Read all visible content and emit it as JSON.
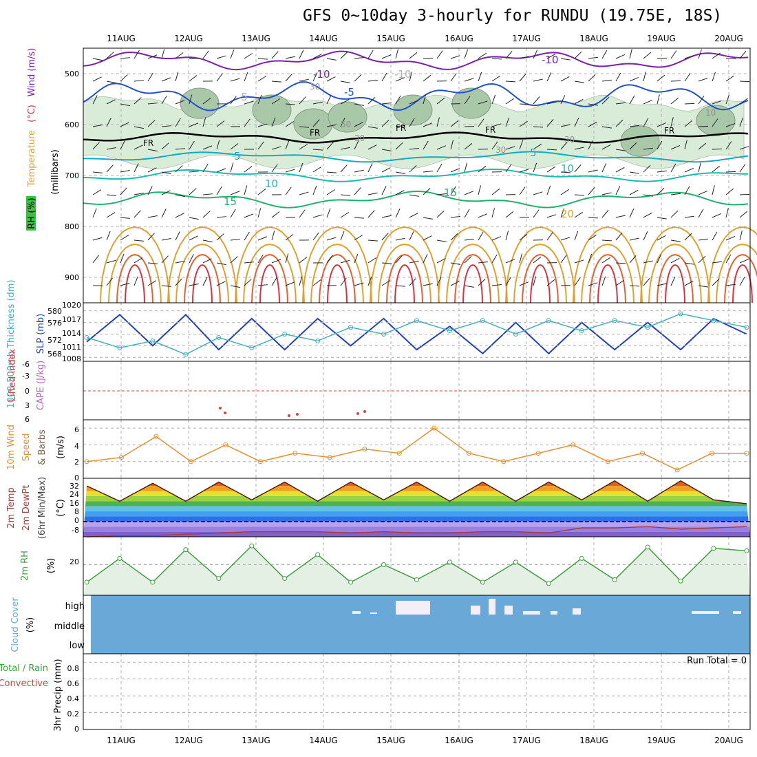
{
  "title": "GFS 0~10day 3-hourly for RUNDU (19.75E, 18S)",
  "dates": [
    "11AUG",
    "12AUG",
    "13AUG",
    "14AUG",
    "15AUG",
    "16AUG",
    "17AUG",
    "18AUG",
    "19AUG",
    "20AUG"
  ],
  "colors": {
    "temp_cold": "#7a1fb0",
    "temp_blue": "#2050d0",
    "temp_teal": "#18a8c0",
    "temp_green": "#20b070",
    "temp_orange": "#e0a030",
    "temp_red": "#e03040",
    "rh_fill": "#d8ecd8",
    "slp": "#2040c0",
    "thickness": "#40b0c0",
    "lifted": "#e04040",
    "wind": "#e89030",
    "cloud": "#6aa8d8",
    "rh2m": "#40a040"
  },
  "panels": {
    "upper": {
      "ylabel_parts": [
        "RH (%)",
        "Temperature",
        "(°C)",
        "Wind (m/s)"
      ],
      "axis_label": "(millibars)",
      "yticks": [
        "500",
        "600",
        "700",
        "800",
        "900"
      ],
      "contour_labels": [
        "-10",
        "-10",
        "-10",
        "-5",
        "-5",
        "5",
        "5",
        "10",
        "10",
        "15",
        "15",
        "20",
        "FR",
        "FR",
        "FR",
        "FR",
        "FR",
        "30",
        "30",
        "50",
        "30",
        "30",
        "10"
      ]
    },
    "slp": {
      "ylabel": "1000-500mb Thickness (dm)",
      "ylabel2": "SLP (mb)",
      "left_ticks": [
        "580",
        "576",
        "572",
        "568"
      ],
      "right_ticks": [
        "1020",
        "1017",
        "1014",
        "1011",
        "1008"
      ]
    },
    "cape": {
      "ylabel": "Lifted Index",
      "ylabel2": "CAPE (J/kg)",
      "ticks": [
        "-6",
        "-3",
        "0",
        "3",
        "6"
      ]
    },
    "wind10": {
      "ylabel": "10m Wind",
      "ylabel2": "Speed",
      "ylabel3": "& Barbs",
      "unit": "(m/s)",
      "ticks": [
        "6",
        "4",
        "2",
        "0"
      ]
    },
    "temp2m": {
      "ylabel": "2m Temp",
      "ylabel2": "2m DewPt",
      "ylabel3": "(6hr Min/Max)",
      "unit": "(°C)",
      "ticks": [
        "32",
        "24",
        "16",
        "8",
        "0",
        "-8"
      ]
    },
    "rh2m": {
      "ylabel": "2m RH",
      "unit": "(%)",
      "ticks": [
        "20"
      ]
    },
    "cloud": {
      "ylabel": "Cloud Cover",
      "unit": "(%)",
      "levels": [
        "high",
        "middle",
        "low"
      ]
    },
    "precip": {
      "ylabel": "3hr Precip (mm)",
      "legend1": "Total / Rain",
      "legend2": "Convective",
      "run_total": "Run Total = 0",
      "ticks": [
        "0.8",
        "0.6",
        "0.4",
        "0.2",
        "0"
      ]
    }
  },
  "chart_data": [
    {
      "type": "line",
      "title": "1000-500mb Thickness / SLP",
      "x": [
        "10AUG 12",
        "11AUG 00",
        "11AUG 12",
        "12AUG 00",
        "12AUG 12",
        "13AUG 00",
        "13AUG 12",
        "14AUG 00",
        "14AUG 12",
        "15AUG 00",
        "15AUG 12",
        "16AUG 00",
        "16AUG 12",
        "17AUG 00",
        "17AUG 12",
        "18AUG 00",
        "18AUG 12",
        "19AUG 00",
        "19AUG 12",
        "20AUG 00",
        "20AUG 09"
      ],
      "series": [
        {
          "name": "SLP (mb)",
          "values": [
            1012,
            1019,
            1011,
            1019,
            1010,
            1018,
            1010,
            1018,
            1011,
            1018,
            1010,
            1016,
            1009,
            1017,
            1009,
            1017,
            1010,
            1017,
            1010,
            1018,
            1014
          ]
        },
        {
          "name": "1000-500mb Thickness (dm)",
          "values": [
            573,
            570,
            572,
            568,
            573,
            570,
            574,
            572,
            576,
            574,
            578,
            575,
            578,
            574,
            578,
            575,
            578,
            576,
            580,
            578,
            576
          ]
        }
      ]
    },
    {
      "type": "line",
      "title": "10m Wind Speed",
      "x": [
        "10AUG",
        "11AUG",
        "11AUG 12",
        "12AUG",
        "12AUG 12",
        "13AUG",
        "13AUG 12",
        "14AUG",
        "14AUG 12",
        "15AUG",
        "15AUG 12",
        "16AUG",
        "16AUG 12",
        "17AUG",
        "17AUG 12",
        "18AUG",
        "18AUG 12",
        "19AUG",
        "19AUG 12",
        "20AUG"
      ],
      "series": [
        {
          "name": "10m Wind Speed",
          "values": [
            2,
            2.5,
            5,
            2,
            4,
            2,
            3,
            2.5,
            3.5,
            3,
            6,
            3,
            2,
            3,
            4,
            2,
            3,
            1,
            3,
            3
          ]
        }
      ],
      "ylim": [
        0,
        7
      ]
    },
    {
      "type": "area",
      "title": "2m Temp / DewPt",
      "x": [
        "10AUG 12",
        "11AUG 00",
        "11AUG 12",
        "12AUG 00",
        "12AUG 12",
        "13AUG 00",
        "13AUG 12",
        "14AUG 00",
        "14AUG 12",
        "15AUG 00",
        "15AUG 12",
        "16AUG 00",
        "16AUG 12",
        "17AUG 00",
        "17AUG 12",
        "18AUG 00",
        "18AUG 12",
        "19AUG 00",
        "19AUG 12",
        "20AUG 00",
        "20AUG 09"
      ],
      "series": [
        {
          "name": "2m Temp",
          "values": [
            28,
            16,
            30,
            16,
            31,
            17,
            31,
            16,
            31,
            17,
            31,
            16,
            31,
            16,
            31,
            17,
            32,
            16,
            32,
            17,
            14
          ]
        },
        {
          "name": "2m DewPt",
          "values": [
            -12,
            -11,
            -11,
            -10,
            -9,
            -8,
            -8,
            -8,
            -9,
            -8,
            -9,
            -9,
            -8,
            -8,
            -9,
            -5,
            -5,
            -4,
            -6,
            -5,
            -4
          ]
        }
      ],
      "ylim": [
        -12,
        34
      ]
    },
    {
      "type": "area",
      "title": "2m RH",
      "x": [
        "10AUG 12",
        "11AUG 00",
        "11AUG 12",
        "12AUG 00",
        "12AUG 12",
        "13AUG 00",
        "13AUG 12",
        "14AUG 00",
        "14AUG 12",
        "15AUG 00",
        "15AUG 12",
        "16AUG 00",
        "16AUG 12",
        "17AUG 00",
        "17AUG 12",
        "18AUG 00",
        "18AUG 12",
        "19AUG 00",
        "19AUG 12",
        "20AUG 00",
        "20AUG 09"
      ],
      "series": [
        {
          "name": "2m RH",
          "values": [
            6,
            25,
            6,
            32,
            9,
            35,
            9,
            28,
            6,
            20,
            8,
            22,
            6,
            22,
            5,
            25,
            8,
            34,
            7,
            33,
            31
          ]
        }
      ],
      "ylim": [
        0,
        40
      ]
    },
    {
      "type": "bar",
      "title": "Cloud Cover",
      "categories": [
        "15AUG 00",
        "15AUG 12",
        "16AUG 06",
        "16AUG 12",
        "16AUG 18",
        "17AUG 06",
        "18AUG 00",
        "19AUG 12"
      ],
      "values": [
        10,
        25,
        15,
        25,
        10,
        5,
        8,
        2
      ],
      "ylim": [
        0,
        100
      ]
    },
    {
      "type": "line",
      "title": "3hr Precip",
      "series": [
        {
          "name": "Total / Rain",
          "values": [
            0
          ]
        }
      ],
      "ylim": [
        0,
        0.9
      ]
    }
  ]
}
